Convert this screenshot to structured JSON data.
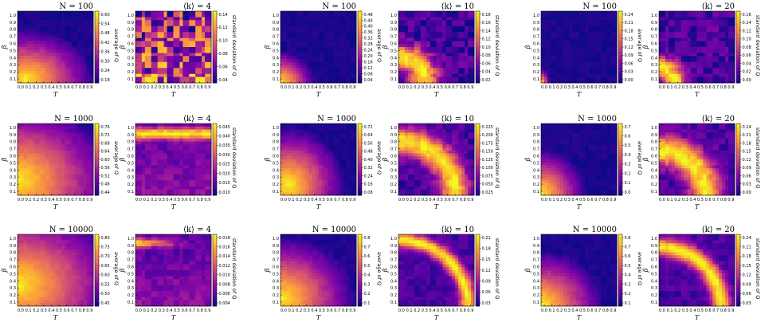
{
  "colors": {
    "low": "#0d0887",
    "mid": "#cc4778",
    "high": "#f0f921"
  },
  "chart_data": [
    {
      "type": "heatmap",
      "title": "N = 100",
      "metric": "average of Q",
      "xlabel": "T",
      "ylabel": "β",
      "x_ticks": [
        "0.0",
        "0.1",
        "0.2",
        "0.3",
        "0.4",
        "0.5",
        "0.6",
        "0.7",
        "0.8",
        "0.9"
      ],
      "y_ticks": [
        "0.1",
        "0.2",
        "0.3",
        "0.4",
        "0.5",
        "0.6",
        "0.7",
        "0.8",
        "0.9",
        "1.0"
      ],
      "colorbar_ticks": [
        "0.18",
        "0.24",
        "0.30",
        "0.36",
        "0.42",
        "0.48",
        "0.54",
        "0.60"
      ],
      "pattern": {
        "kind": "avg",
        "cx": 0.1,
        "cy": 0.05,
        "rx": 0.9,
        "ry": 0.7
      }
    },
    {
      "type": "heatmap",
      "title": "⟨k⟩ = 4",
      "metric": "standard deviation of Q",
      "xlabel": "T",
      "ylabel": "β",
      "x_ticks": [
        "0.0",
        "0.1",
        "0.2",
        "0.3",
        "0.4",
        "0.5",
        "0.6",
        "0.7",
        "0.8",
        "0.9"
      ],
      "y_ticks": [
        "0.1",
        "0.2",
        "0.3",
        "0.4",
        "0.5",
        "0.6",
        "0.7",
        "0.8",
        "0.9",
        "1.0"
      ],
      "colorbar_ticks": [
        "0.04",
        "0.06",
        "0.08",
        "0.10",
        "0.12",
        "0.14"
      ],
      "pattern": {
        "kind": "sdnoise"
      }
    },
    {
      "type": "heatmap",
      "title": "N = 100",
      "metric": "average of Q",
      "xlabel": "T",
      "ylabel": "β",
      "x_ticks": [
        "0.0",
        "0.1",
        "0.2",
        "0.3",
        "0.4",
        "0.5",
        "0.6",
        "0.7",
        "0.8",
        "0.9"
      ],
      "y_ticks": [
        "0.1",
        "0.2",
        "0.3",
        "0.4",
        "0.5",
        "0.6",
        "0.7",
        "0.8",
        "0.9",
        "1.0"
      ],
      "colorbar_ticks": [
        "0.04",
        "0.08",
        "0.12",
        "0.16",
        "0.20",
        "0.24",
        "0.28",
        "0.32",
        "0.36",
        "0.40",
        "0.44",
        "0.48"
      ],
      "pattern": {
        "kind": "avg",
        "cx": 0.0,
        "cy": 0.0,
        "rx": 0.45,
        "ry": 0.45
      }
    },
    {
      "type": "heatmap",
      "title": "⟨k⟩ = 10",
      "metric": "standard deviation of Q",
      "xlabel": "T",
      "ylabel": "β",
      "x_ticks": [
        "0.0",
        "0.1",
        "0.2",
        "0.3",
        "0.4",
        "0.5",
        "0.6",
        "0.7",
        "0.8",
        "0.9"
      ],
      "y_ticks": [
        "0.1",
        "0.2",
        "0.3",
        "0.4",
        "0.5",
        "0.6",
        "0.7",
        "0.8",
        "0.9",
        "1.0"
      ],
      "colorbar_ticks": [
        "0.02",
        "0.04",
        "0.06",
        "0.08",
        "0.10",
        "0.12",
        "0.14",
        "0.16",
        "0.18"
      ],
      "pattern": {
        "kind": "ring",
        "cx": 0.0,
        "cy": 0.0,
        "r": 0.35,
        "w": 0.18,
        "noise": 0.3
      }
    },
    {
      "type": "heatmap",
      "title": "N = 100",
      "metric": "average of Q",
      "xlabel": "T",
      "ylabel": "β",
      "x_ticks": [
        "0.0",
        "0.1",
        "0.2",
        "0.3",
        "0.4",
        "0.5",
        "0.6",
        "0.7",
        "0.8",
        "0.9"
      ],
      "y_ticks": [
        "0.1",
        "0.2",
        "0.3",
        "0.4",
        "0.5",
        "0.6",
        "0.7",
        "0.8",
        "0.9",
        "1.0"
      ],
      "colorbar_ticks": [
        "0.00",
        "0.03",
        "0.06",
        "0.09",
        "0.12",
        "0.15",
        "0.18",
        "0.21",
        "0.24"
      ],
      "pattern": {
        "kind": "avg",
        "cx": 0.0,
        "cy": 0.0,
        "rx": 0.12,
        "ry": 0.2
      }
    },
    {
      "type": "heatmap",
      "title": "⟨k⟩ = 20",
      "metric": "standard deviation of Q",
      "xlabel": "T",
      "ylabel": "β",
      "x_ticks": [
        "0.0",
        "0.1",
        "0.2",
        "0.3",
        "0.4",
        "0.5",
        "0.6",
        "0.7",
        "0.8",
        "0.9"
      ],
      "y_ticks": [
        "0.1",
        "0.2",
        "0.3",
        "0.4",
        "0.5",
        "0.6",
        "0.7",
        "0.8",
        "0.9",
        "1.0"
      ],
      "colorbar_ticks": [
        "0.00",
        "0.02",
        "0.04",
        "0.06",
        "0.08",
        "0.10",
        "0.12",
        "0.14",
        "0.16"
      ],
      "pattern": {
        "kind": "ring",
        "cx": 0.0,
        "cy": 0.0,
        "r": 0.2,
        "w": 0.15,
        "noise": 0.25
      }
    },
    {
      "type": "heatmap",
      "title": "N = 1000",
      "metric": "average of Q",
      "xlabel": "T",
      "ylabel": "β",
      "x_ticks": [
        "0.0",
        "0.1",
        "0.2",
        "0.3",
        "0.4",
        "0.5",
        "0.6",
        "0.7",
        "0.8",
        "0.9"
      ],
      "y_ticks": [
        "0.1",
        "0.2",
        "0.3",
        "0.4",
        "0.5",
        "0.6",
        "0.7",
        "0.8",
        "0.9",
        "1.0"
      ],
      "colorbar_ticks": [
        "0.44",
        "0.48",
        "0.52",
        "0.56",
        "0.60",
        "0.64",
        "0.68",
        "0.72",
        "0.76"
      ],
      "pattern": {
        "kind": "avg",
        "cx": 0.0,
        "cy": 0.2,
        "rx": 1.3,
        "ry": 1.1
      }
    },
    {
      "type": "heatmap",
      "title": "⟨k⟩ = 4",
      "metric": "standard deviation of Q",
      "xlabel": "T",
      "ylabel": "β",
      "x_ticks": [
        "0.0",
        "0.1",
        "0.2",
        "0.3",
        "0.4",
        "0.5",
        "0.6",
        "0.7",
        "0.8",
        "0.9"
      ],
      "y_ticks": [
        "0.1",
        "0.2",
        "0.3",
        "0.4",
        "0.5",
        "0.6",
        "0.7",
        "0.8",
        "0.9",
        "1.0"
      ],
      "colorbar_ticks": [
        "0.010",
        "0.015",
        "0.020",
        "0.025",
        "0.030",
        "0.035",
        "0.040",
        "0.045"
      ],
      "pattern": {
        "kind": "band",
        "y": 0.86,
        "w": 0.08
      }
    },
    {
      "type": "heatmap",
      "title": "N = 1000",
      "metric": "average of Q",
      "xlabel": "T",
      "ylabel": "β",
      "x_ticks": [
        "0.0",
        "0.1",
        "0.2",
        "0.3",
        "0.4",
        "0.5",
        "0.6",
        "0.7",
        "0.8",
        "0.9"
      ],
      "y_ticks": [
        "0.1",
        "0.2",
        "0.3",
        "0.4",
        "0.5",
        "0.6",
        "0.7",
        "0.8",
        "0.9",
        "1.0"
      ],
      "colorbar_ticks": [
        "0.08",
        "0.16",
        "0.24",
        "0.32",
        "0.40",
        "0.48",
        "0.56",
        "0.64",
        "0.72"
      ],
      "pattern": {
        "kind": "avg",
        "cx": 0.1,
        "cy": 0.15,
        "rx": 0.75,
        "ry": 0.8
      }
    },
    {
      "type": "heatmap",
      "title": "⟨k⟩ = 10",
      "metric": "standard deviation of Q",
      "xlabel": "T",
      "ylabel": "β",
      "x_ticks": [
        "0.0",
        "0.1",
        "0.2",
        "0.3",
        "0.4",
        "0.5",
        "0.6",
        "0.7",
        "0.8",
        "0.9"
      ],
      "y_ticks": [
        "0.1",
        "0.2",
        "0.3",
        "0.4",
        "0.5",
        "0.6",
        "0.7",
        "0.8",
        "0.9",
        "1.0"
      ],
      "colorbar_ticks": [
        "0.025",
        "0.050",
        "0.075",
        "0.100",
        "0.125",
        "0.150",
        "0.175",
        "0.200",
        "0.225"
      ],
      "pattern": {
        "kind": "ring",
        "cx": 0.0,
        "cy": 0.0,
        "r": 0.75,
        "w": 0.18,
        "noise": 0.2
      }
    },
    {
      "type": "heatmap",
      "title": "N = 1000",
      "metric": "average of Q",
      "xlabel": "T",
      "ylabel": "β",
      "x_ticks": [
        "0.0",
        "0.1",
        "0.2",
        "0.3",
        "0.4",
        "0.5",
        "0.6",
        "0.7",
        "0.8",
        "0.9"
      ],
      "y_ticks": [
        "0.1",
        "0.2",
        "0.3",
        "0.4",
        "0.5",
        "0.6",
        "0.7",
        "0.8",
        "0.9",
        "1.0"
      ],
      "colorbar_ticks": [
        "0.0",
        "0.1",
        "0.2",
        "0.3",
        "0.4",
        "0.5",
        "0.6",
        "0.7"
      ],
      "pattern": {
        "kind": "avg",
        "cx": 0.0,
        "cy": 0.0,
        "rx": 0.6,
        "ry": 0.65
      }
    },
    {
      "type": "heatmap",
      "title": "⟨k⟩ = 20",
      "metric": "standard deviation of Q",
      "xlabel": "T",
      "ylabel": "β",
      "x_ticks": [
        "0.0",
        "0.1",
        "0.2",
        "0.3",
        "0.4",
        "0.5",
        "0.6",
        "0.7",
        "0.8",
        "0.9"
      ],
      "y_ticks": [
        "0.1",
        "0.2",
        "0.3",
        "0.4",
        "0.5",
        "0.6",
        "0.7",
        "0.8",
        "0.9",
        "1.0"
      ],
      "colorbar_ticks": [
        "0.00",
        "0.03",
        "0.06",
        "0.09",
        "0.12",
        "0.15",
        "0.18",
        "0.21",
        "0.24"
      ],
      "pattern": {
        "kind": "ring",
        "cx": 0.0,
        "cy": 0.0,
        "r": 0.62,
        "w": 0.2,
        "noise": 0.2
      }
    },
    {
      "type": "heatmap",
      "title": "N = 10000",
      "metric": "average of Q",
      "xlabel": "T",
      "ylabel": "β",
      "x_ticks": [
        "0.0",
        "0.1",
        "0.2",
        "0.3",
        "0.4",
        "0.5",
        "0.6",
        "0.7",
        "0.8",
        "0.9"
      ],
      "y_ticks": [
        "0.1",
        "0.2",
        "0.3",
        "0.4",
        "0.5",
        "0.6",
        "0.7",
        "0.8",
        "0.9",
        "1.0"
      ],
      "colorbar_ticks": [
        "0.45",
        "0.50",
        "0.55",
        "0.60",
        "0.65",
        "0.70",
        "0.75",
        "0.80"
      ],
      "pattern": {
        "kind": "avg",
        "cx": 0.0,
        "cy": 0.3,
        "rx": 1.4,
        "ry": 1.1
      }
    },
    {
      "type": "heatmap",
      "title": "⟨k⟩ = 4",
      "metric": "standard deviation of Q",
      "xlabel": "T",
      "ylabel": "β",
      "x_ticks": [
        "0.0",
        "0.1",
        "0.2",
        "0.3",
        "0.4",
        "0.5",
        "0.6",
        "0.7",
        "0.8",
        "0.9"
      ],
      "y_ticks": [
        "0.1",
        "0.2",
        "0.3",
        "0.4",
        "0.5",
        "0.6",
        "0.7",
        "0.8",
        "0.9",
        "1.0"
      ],
      "colorbar_ticks": [
        "0.004",
        "0.006",
        "0.008",
        "0.010",
        "0.012",
        "0.014",
        "0.016",
        "0.018"
      ],
      "pattern": {
        "kind": "band",
        "y": 0.88,
        "w": 0.06,
        "left": true
      }
    },
    {
      "type": "heatmap",
      "title": "N = 10000",
      "metric": "average of Q",
      "xlabel": "T",
      "ylabel": "β",
      "x_ticks": [
        "0.0",
        "0.1",
        "0.2",
        "0.3",
        "0.4",
        "0.5",
        "0.6",
        "0.7",
        "0.8",
        "0.9"
      ],
      "y_ticks": [
        "0.1",
        "0.2",
        "0.3",
        "0.4",
        "0.5",
        "0.6",
        "0.7",
        "0.8",
        "0.9",
        "1.0"
      ],
      "colorbar_ticks": [
        "0.1",
        "0.2",
        "0.3",
        "0.4",
        "0.5",
        "0.6",
        "0.7",
        "0.8"
      ],
      "pattern": {
        "kind": "avg",
        "cx": 0.0,
        "cy": 0.1,
        "rx": 1.0,
        "ry": 0.88
      }
    },
    {
      "type": "heatmap",
      "title": "⟨k⟩ = 10",
      "metric": "standard deviation of Q",
      "xlabel": "T",
      "ylabel": "β",
      "x_ticks": [
        "0.0",
        "0.1",
        "0.2",
        "0.3",
        "0.4",
        "0.5",
        "0.6",
        "0.7",
        "0.8",
        "0.9"
      ],
      "y_ticks": [
        "0.1",
        "0.2",
        "0.3",
        "0.4",
        "0.5",
        "0.6",
        "0.7",
        "0.8",
        "0.9",
        "1.0"
      ],
      "colorbar_ticks": [
        "0.03",
        "0.06",
        "0.09",
        "0.12",
        "0.15",
        "0.18",
        "0.21"
      ],
      "pattern": {
        "kind": "ring",
        "cx": 0.0,
        "cy": 0.0,
        "r": 0.92,
        "w": 0.1,
        "noise": 0.15
      }
    },
    {
      "type": "heatmap",
      "title": "N = 10000",
      "metric": "average of Q",
      "xlabel": "T",
      "ylabel": "β",
      "x_ticks": [
        "0.0",
        "0.1",
        "0.2",
        "0.3",
        "0.4",
        "0.5",
        "0.6",
        "0.7",
        "0.8",
        "0.9"
      ],
      "y_ticks": [
        "0.1",
        "0.2",
        "0.3",
        "0.4",
        "0.5",
        "0.6",
        "0.7",
        "0.8",
        "0.9",
        "1.0"
      ],
      "colorbar_ticks": [
        "0.1",
        "0.2",
        "0.3",
        "0.4",
        "0.5",
        "0.6",
        "0.7",
        "0.8"
      ],
      "pattern": {
        "kind": "avg",
        "cx": 0.0,
        "cy": 0.0,
        "rx": 0.82,
        "ry": 0.78
      }
    },
    {
      "type": "heatmap",
      "title": "⟨k⟩ = 20",
      "metric": "standard deviation of Q",
      "xlabel": "T",
      "ylabel": "β",
      "x_ticks": [
        "0.0",
        "0.1",
        "0.2",
        "0.3",
        "0.4",
        "0.5",
        "0.6",
        "0.7",
        "0.8",
        "0.9"
      ],
      "y_ticks": [
        "0.1",
        "0.2",
        "0.3",
        "0.4",
        "0.5",
        "0.6",
        "0.7",
        "0.8",
        "0.9",
        "1.0"
      ],
      "colorbar_ticks": [
        "0.03",
        "0.06",
        "0.09",
        "0.12",
        "0.15",
        "0.18",
        "0.21",
        "0.24"
      ],
      "pattern": {
        "kind": "ring",
        "cx": 0.0,
        "cy": 0.0,
        "r": 0.82,
        "w": 0.12,
        "noise": 0.15
      }
    }
  ]
}
